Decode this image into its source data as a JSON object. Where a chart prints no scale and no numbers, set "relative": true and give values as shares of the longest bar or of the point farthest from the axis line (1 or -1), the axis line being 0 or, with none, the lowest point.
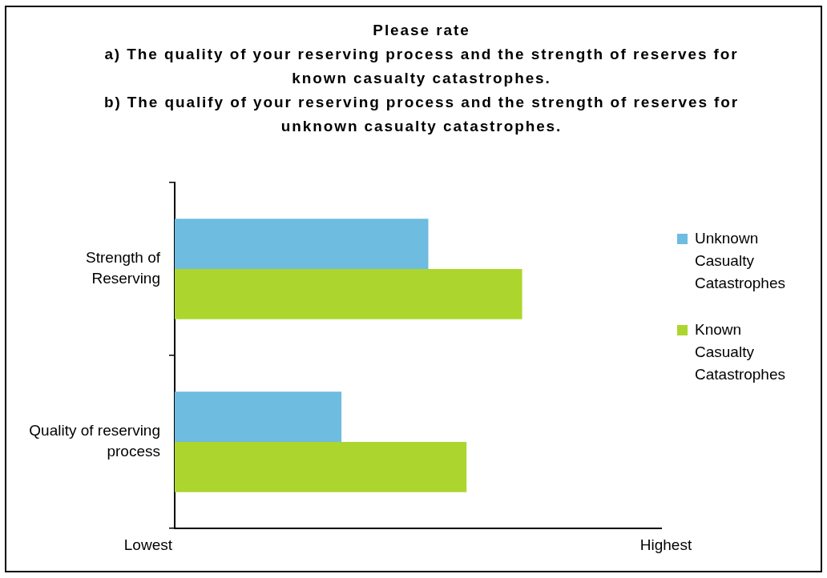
{
  "chart_data": {
    "type": "bar",
    "orientation": "horizontal",
    "relative": true,
    "title": "Please rate\na) The quality of your reserving process and the strength of reserves for known casualty catastrophes.\nb) The qualify of your reserving process and the strength of reserves for unknown casualty catastrophes.",
    "categories": [
      "Strength of Reserving",
      "Quality of reserving process"
    ],
    "series": [
      {
        "name": "Unknown Casualty Catastrophes",
        "color": "#6ebce0",
        "values": [
          0.73,
          0.48
        ]
      },
      {
        "name": "Known Casualty Catastrophes",
        "color": "#acd62d",
        "values": [
          1,
          0.84
        ]
      }
    ],
    "annotations": [
      "Lowest",
      "Highest"
    ],
    "legend": "right"
  }
}
